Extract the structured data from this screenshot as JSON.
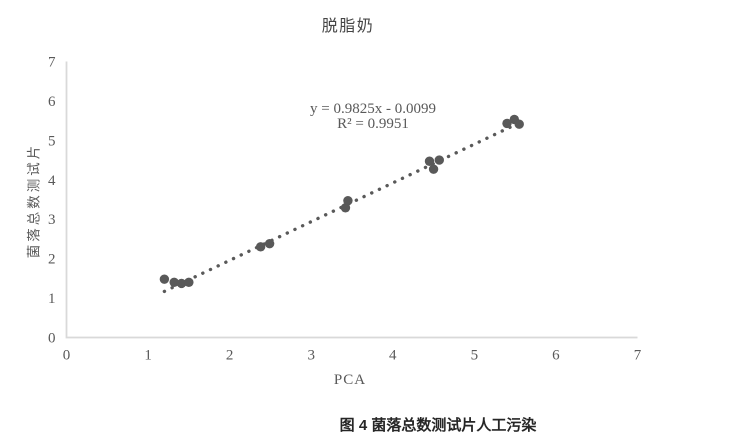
{
  "caption": "图 4 菌落总数测试片人工污染",
  "chart_data": {
    "type": "scatter",
    "title": "脱脂奶",
    "xlabel": "PCA",
    "ylabel": "菌落总数测试片",
    "xlim": [
      0,
      7
    ],
    "ylim": [
      0,
      7
    ],
    "xticks": [
      0,
      1,
      2,
      3,
      4,
      5,
      6,
      7
    ],
    "yticks": [
      0,
      1,
      2,
      3,
      4,
      5,
      6,
      7
    ],
    "grid": false,
    "legend": false,
    "series": [
      {
        "name": "菌落总数测试片 vs PCA",
        "points": [
          [
            1.2,
            1.48
          ],
          [
            1.32,
            1.4
          ],
          [
            1.41,
            1.37
          ],
          [
            1.5,
            1.4
          ],
          [
            2.38,
            2.3
          ],
          [
            2.49,
            2.38
          ],
          [
            3.42,
            3.29
          ],
          [
            3.45,
            3.47
          ],
          [
            4.45,
            4.47
          ],
          [
            4.5,
            4.27
          ],
          [
            4.57,
            4.5
          ],
          [
            5.4,
            5.43
          ],
          [
            5.49,
            5.53
          ],
          [
            5.55,
            5.41
          ]
        ]
      }
    ],
    "trendline": {
      "equation": "y = 0.9825x - 0.0099",
      "r2": "R² = 0.9951",
      "slope": 0.9825,
      "intercept": -0.0099,
      "x_start": 1.2,
      "x_end": 5.62,
      "style": "dotted"
    },
    "colors": {
      "marker": "#595959",
      "trendline": "#595959",
      "axis_line": "#d9d9d9",
      "tick_label": "#595959",
      "title": "#454545",
      "caption": "#262626"
    }
  }
}
